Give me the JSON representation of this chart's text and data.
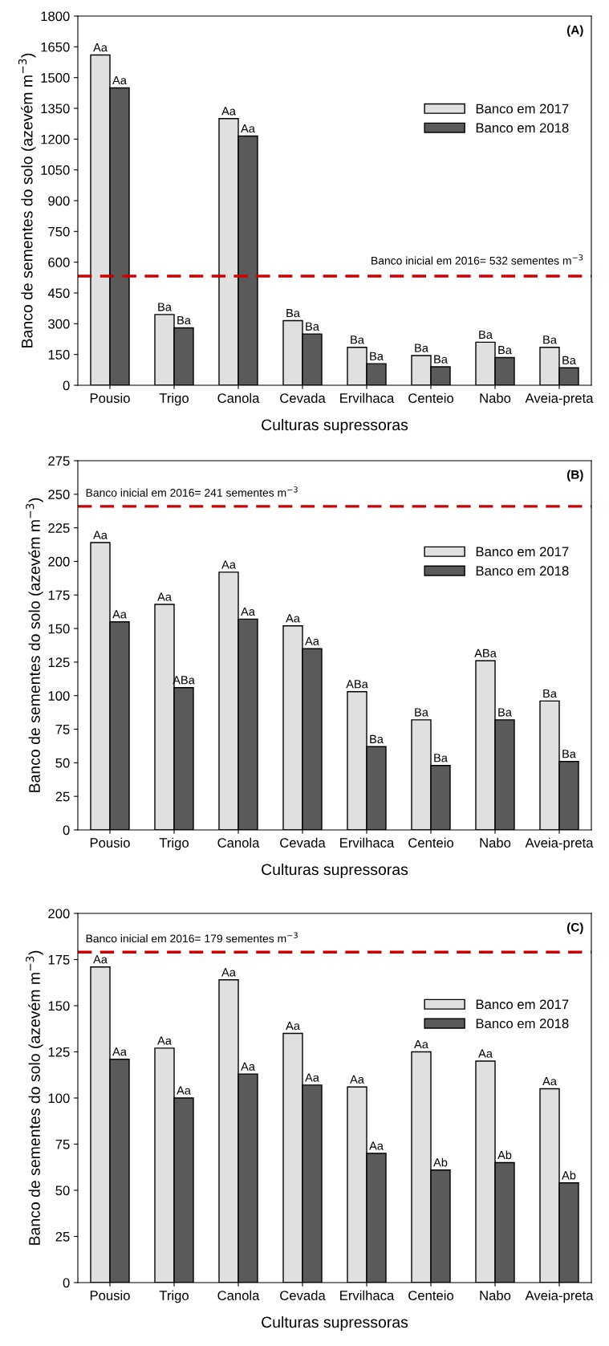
{
  "chart_data": [
    {
      "type": "bar",
      "xlabel": "Culturas supressoras",
      "ylabel": "Banco de sementes do solo (azevém m$^{−3}$)",
      "annotations": [
        "(A)"
      ],
      "categories": [
        "Pousio",
        "Trigo",
        "Canola",
        "Cevada",
        "Ervilhaca",
        "Centeio",
        "Nabo",
        "Aveia-preta"
      ],
      "series": [
        {
          "name": "Banco em 2017",
          "color": "#e0e0e0",
          "values": [
            1610,
            345,
            1300,
            315,
            185,
            145,
            210,
            185
          ],
          "value_labels": [
            "Aa",
            "Ba",
            "Aa",
            "Ba",
            "Ba",
            "Ba",
            "Ba",
            "Ba"
          ]
        },
        {
          "name": "Banco em 2018",
          "color": "#5a5a5a",
          "values": [
            1450,
            280,
            1215,
            250,
            105,
            90,
            135,
            85
          ],
          "value_labels": [
            "Aa",
            "Ba",
            "Aa",
            "Ba",
            "Ba",
            "Ba",
            "Ba",
            "Ba"
          ]
        }
      ],
      "ylim": [
        0,
        1800
      ],
      "yticks": [
        0,
        150,
        300,
        450,
        600,
        750,
        900,
        1050,
        1200,
        1350,
        1500,
        1650,
        1800
      ],
      "ref_lines": [
        {
          "axis": "y",
          "value": 532,
          "label": "Banco inicial em 2016= 532 sementes m$^{−3}$",
          "color": "#cc0000",
          "line_style": "dashed"
        }
      ],
      "legend": "right",
      "grid": false
    },
    {
      "type": "bar",
      "xlabel": "Culturas supressoras",
      "ylabel": "Banco de sementes do solo (azevém m$^{−3}$)",
      "annotations": [
        "(B)"
      ],
      "categories": [
        "Pousio",
        "Trigo",
        "Canola",
        "Cevada",
        "Ervilhaca",
        "Centeio",
        "Nabo",
        "Aveia-preta"
      ],
      "series": [
        {
          "name": "Banco em 2017",
          "color": "#e0e0e0",
          "values": [
            214,
            168,
            192,
            152,
            103,
            82,
            126,
            96
          ],
          "value_labels": [
            "Aa",
            "Aa",
            "Aa",
            "Aa",
            "ABa",
            "Ba",
            "ABa",
            "Ba"
          ]
        },
        {
          "name": "Banco em 2018",
          "color": "#5a5a5a",
          "values": [
            155,
            106,
            157,
            135,
            62,
            48,
            82,
            51
          ],
          "value_labels": [
            "Aa",
            "ABa",
            "Aa",
            "Aa",
            "Ba",
            "Ba",
            "Ba",
            "Ba"
          ]
        }
      ],
      "ylim": [
        0,
        275
      ],
      "yticks": [
        0,
        25,
        50,
        75,
        100,
        125,
        150,
        175,
        200,
        225,
        250,
        275
      ],
      "ref_lines": [
        {
          "axis": "y",
          "value": 241,
          "label": "Banco inicial em 2016= 241 sementes m$^{−3}$",
          "color": "#cc0000",
          "line_style": "dashed"
        }
      ],
      "legend": "top right",
      "grid": false
    },
    {
      "type": "bar",
      "xlabel": "Culturas supressoras",
      "ylabel": "Banco de sementes do solo (azevém m$^{−3}$)",
      "annotations": [
        "(C)"
      ],
      "categories": [
        "Pousio",
        "Trigo",
        "Canola",
        "Cevada",
        "Ervilhaca",
        "Centeio",
        "Nabo",
        "Aveia-preta"
      ],
      "series": [
        {
          "name": "Banco em 2017",
          "color": "#e0e0e0",
          "values": [
            171,
            127,
            164,
            135,
            106,
            125,
            120,
            105
          ],
          "value_labels": [
            "Aa",
            "Aa",
            "Aa",
            "Aa",
            "Aa",
            "Aa",
            "Aa",
            "Aa"
          ]
        },
        {
          "name": "Banco em 2018",
          "color": "#5a5a5a",
          "values": [
            121,
            100,
            113,
            107,
            70,
            61,
            65,
            54
          ],
          "value_labels": [
            "Aa",
            "Aa",
            "Aa",
            "Aa",
            "Aa",
            "Ab",
            "Ab",
            "Ab"
          ]
        }
      ],
      "ylim": [
        0,
        200
      ],
      "yticks": [
        0,
        25,
        50,
        75,
        100,
        125,
        150,
        175,
        200
      ],
      "ref_lines": [
        {
          "axis": "y",
          "value": 179,
          "label": "Banco inicial em 2016= 179 sementes m$^{−3}$",
          "color": "#cc0000",
          "line_style": "dashed"
        }
      ],
      "legend": "top right",
      "grid": false
    }
  ]
}
